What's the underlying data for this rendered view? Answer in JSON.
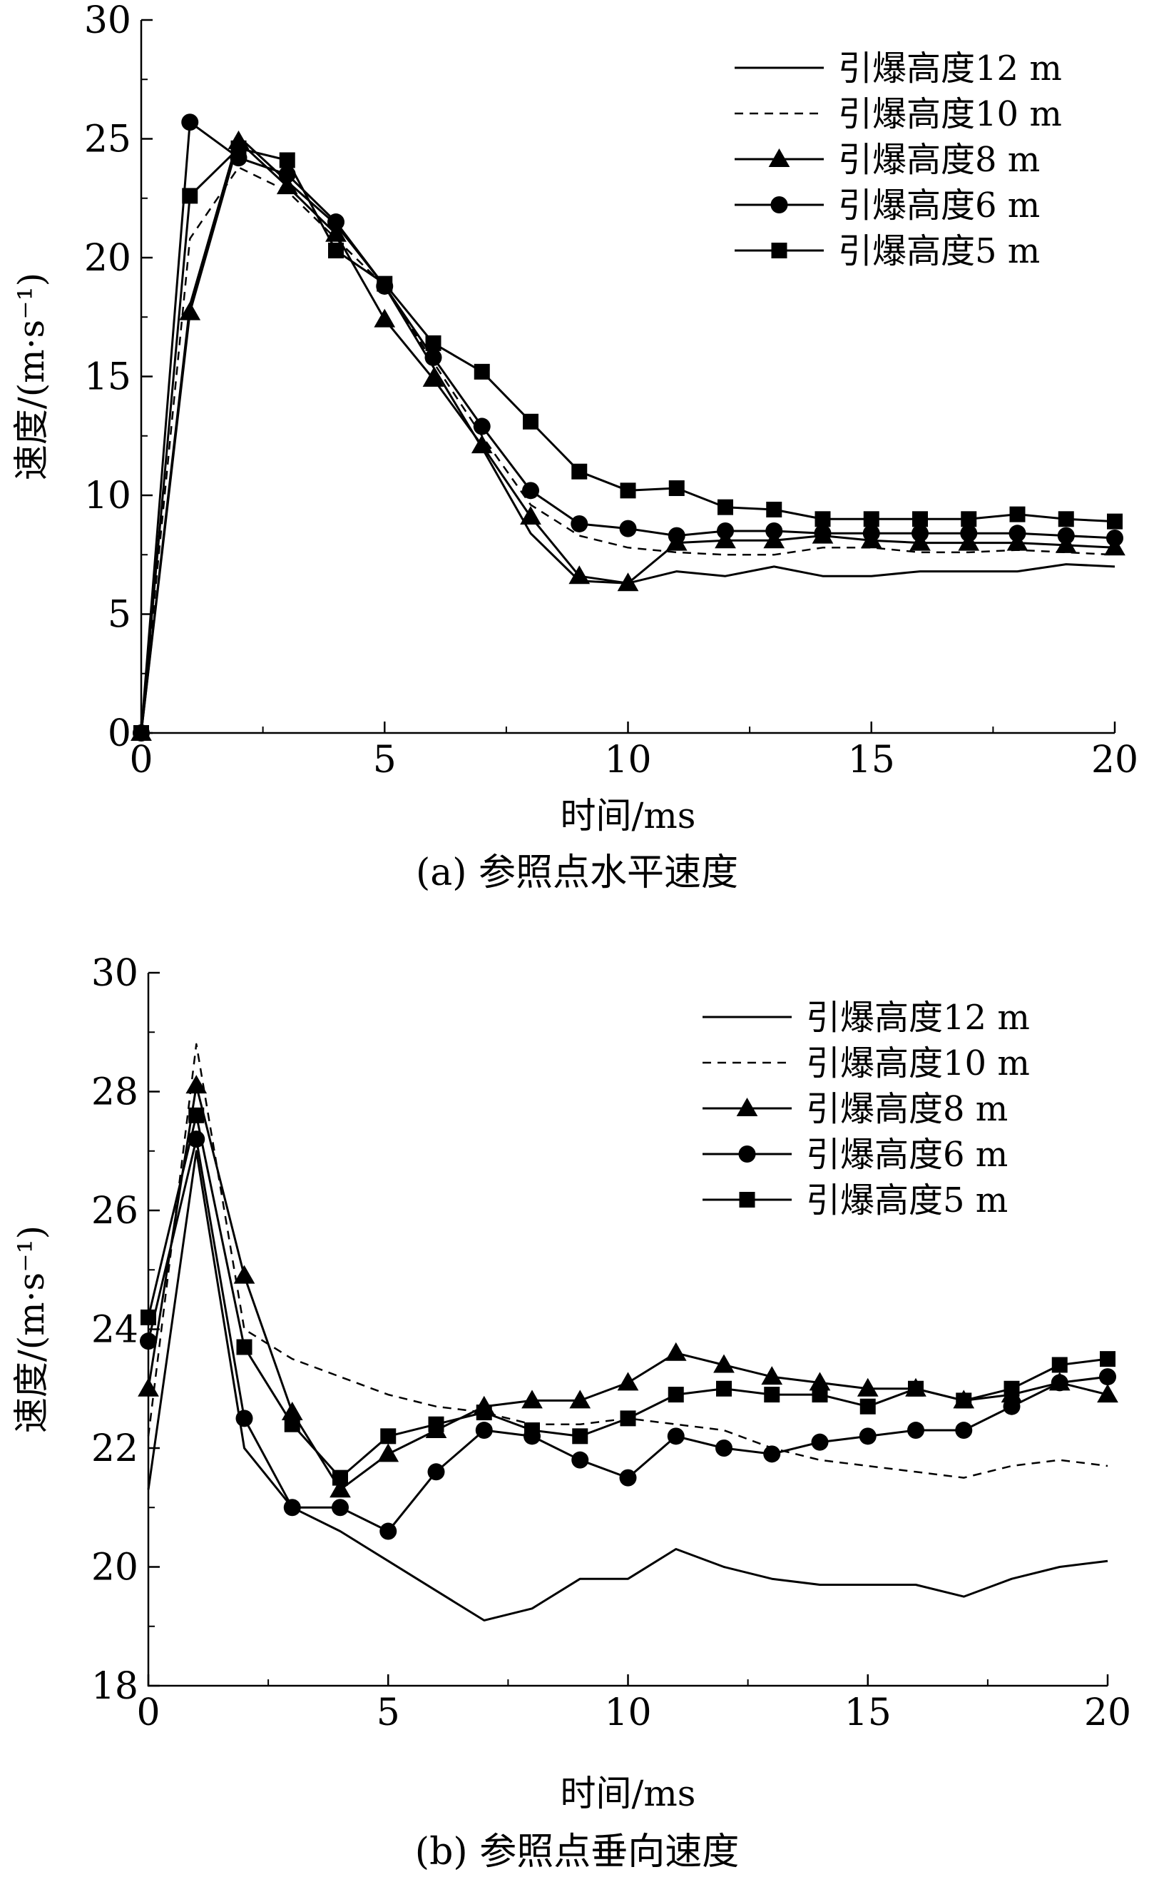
{
  "chart_data": [
    {
      "type": "line",
      "caption": "(a) 参照点水平速度",
      "xlabel": "时间/ms",
      "ylabel": "速度/(m·s⁻¹)",
      "xlim": [
        0,
        20
      ],
      "ylim": [
        0,
        30
      ],
      "xticks": [
        "0",
        "5",
        "10",
        "15",
        "20"
      ],
      "yticks": [
        "0",
        "5",
        "10",
        "15",
        "20",
        "25",
        "30"
      ],
      "grid": false,
      "legend_position": "top-right",
      "x": [
        0,
        1,
        2,
        3,
        4,
        5,
        6,
        7,
        8,
        9,
        10,
        11,
        12,
        13,
        14,
        15,
        16,
        17,
        18,
        19,
        20
      ],
      "series": [
        {
          "name": "引爆高度12 m",
          "style": "solid",
          "marker": "none",
          "values": [
            0,
            18.0,
            25.1,
            23.2,
            21.4,
            18.8,
            15.4,
            12.0,
            8.4,
            6.4,
            6.3,
            6.8,
            6.6,
            7.0,
            6.6,
            6.6,
            6.8,
            6.8,
            6.8,
            7.1,
            7.0
          ]
        },
        {
          "name": "引爆高度10 m",
          "style": "dashed",
          "marker": "none",
          "values": [
            0,
            20.8,
            23.8,
            22.8,
            20.8,
            18.8,
            15.6,
            12.5,
            9.6,
            8.3,
            7.8,
            7.6,
            7.5,
            7.5,
            7.8,
            7.8,
            7.6,
            7.6,
            7.7,
            7.6,
            7.5
          ]
        },
        {
          "name": "引爆高度8 m",
          "style": "solid",
          "marker": "triangle",
          "values": [
            0,
            17.7,
            24.9,
            23.0,
            21.0,
            17.4,
            14.9,
            12.1,
            9.1,
            6.6,
            6.3,
            8.0,
            8.1,
            8.1,
            8.3,
            8.1,
            8.0,
            8.0,
            8.0,
            7.9,
            7.8
          ]
        },
        {
          "name": "引爆高度6 m",
          "style": "solid",
          "marker": "circle",
          "values": [
            0,
            25.7,
            24.2,
            23.5,
            21.5,
            18.8,
            15.8,
            12.9,
            10.2,
            8.8,
            8.6,
            8.3,
            8.5,
            8.5,
            8.4,
            8.4,
            8.4,
            8.4,
            8.4,
            8.3,
            8.2
          ]
        },
        {
          "name": "引爆高度5 m",
          "style": "solid",
          "marker": "square",
          "values": [
            0,
            22.6,
            24.6,
            24.1,
            20.3,
            18.9,
            16.4,
            15.2,
            13.1,
            11.0,
            10.2,
            10.3,
            9.5,
            9.4,
            9.0,
            9.0,
            9.0,
            9.0,
            9.2,
            9.0,
            8.9
          ]
        }
      ]
    },
    {
      "type": "line",
      "caption": "(b) 参照点垂向速度",
      "xlabel": "时间/ms",
      "ylabel": "速度/(m·s⁻¹)",
      "xlim": [
        0,
        20
      ],
      "ylim": [
        18,
        30
      ],
      "xticks": [
        "0",
        "5",
        "10",
        "15",
        "20"
      ],
      "yticks": [
        "18",
        "20",
        "22",
        "24",
        "26",
        "28",
        "30"
      ],
      "grid": false,
      "legend_position": "top-right",
      "x": [
        0,
        1,
        2,
        3,
        4,
        5,
        6,
        7,
        8,
        9,
        10,
        11,
        12,
        13,
        14,
        15,
        16,
        17,
        18,
        19,
        20
      ],
      "series": [
        {
          "name": "引爆高度12 m",
          "style": "solid",
          "marker": "none",
          "values": [
            21.3,
            27.0,
            22.0,
            21.0,
            20.6,
            20.1,
            19.6,
            19.1,
            19.3,
            19.8,
            19.8,
            20.3,
            20.0,
            19.8,
            19.7,
            19.7,
            19.7,
            19.5,
            19.8,
            20.0,
            20.1
          ]
        },
        {
          "name": "引爆高度10 m",
          "style": "dashed",
          "marker": "none",
          "values": [
            22.2,
            28.8,
            24.0,
            23.5,
            23.2,
            22.9,
            22.7,
            22.6,
            22.4,
            22.4,
            22.5,
            22.4,
            22.3,
            22.0,
            21.8,
            21.7,
            21.6,
            21.5,
            21.7,
            21.8,
            21.7
          ]
        },
        {
          "name": "引爆高度8 m",
          "style": "solid",
          "marker": "triangle",
          "values": [
            23.0,
            28.1,
            24.9,
            22.6,
            21.3,
            21.9,
            22.3,
            22.7,
            22.8,
            22.8,
            23.1,
            23.6,
            23.4,
            23.2,
            23.1,
            23.0,
            23.0,
            22.8,
            22.9,
            23.1,
            22.9
          ]
        },
        {
          "name": "引爆高度6 m",
          "style": "solid",
          "marker": "circle",
          "values": [
            23.8,
            27.2,
            22.5,
            21.0,
            21.0,
            20.6,
            21.6,
            22.3,
            22.2,
            21.8,
            21.5,
            22.2,
            22.0,
            21.9,
            22.1,
            22.2,
            22.3,
            22.3,
            22.7,
            23.1,
            23.2
          ]
        },
        {
          "name": "引爆高度5 m",
          "style": "solid",
          "marker": "square",
          "values": [
            24.2,
            27.6,
            23.7,
            22.4,
            21.5,
            22.2,
            22.4,
            22.6,
            22.3,
            22.2,
            22.5,
            22.9,
            23.0,
            22.9,
            22.9,
            22.7,
            23.0,
            22.8,
            23.0,
            23.4,
            23.5
          ]
        }
      ]
    }
  ]
}
